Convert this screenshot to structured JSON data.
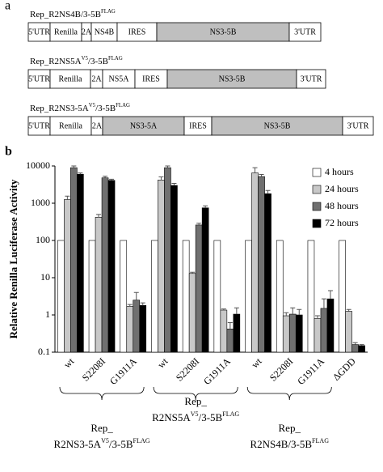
{
  "panel_labels": [
    "a",
    "b"
  ],
  "constructs": [
    {
      "name_parts": [
        "Rep_R2NS4B/3-5B",
        "FLAG"
      ],
      "segments": [
        "5'UTR",
        "Renilla",
        "2A",
        "NS4B",
        "IRES",
        "NS3-5B",
        "3'UTR"
      ]
    },
    {
      "name_parts": [
        "Rep_R2NS5A",
        "V5",
        "/3-5B",
        "FLAG"
      ],
      "segments": [
        "5'UTR",
        "Renilla",
        "2A",
        "NS5A",
        "IRES",
        "NS3-5B",
        "3'UTR"
      ]
    },
    {
      "name_parts": [
        "Rep_R2NS3-5A",
        "V5",
        "/3-5B",
        "FLAG"
      ],
      "segments": [
        "5'UTR",
        "Renilla",
        "2A",
        "NS3-5A",
        "IRES",
        "NS3-5B",
        "3'UTR"
      ]
    }
  ],
  "chart_data": {
    "type": "bar",
    "y_label": "Relative Renilla  Luciferase Activity",
    "log_y": true,
    "legend": "top-right",
    "categories": [
      "wt",
      "S2208I",
      "G1911A",
      "wt",
      "S2208I",
      "G1911A",
      "wt",
      "S2208I",
      "G1911A",
      "ΔGDD"
    ],
    "series": [
      {
        "name": "4 hours",
        "color": "#ffffff",
        "values": [
          100,
          100,
          100,
          100,
          100,
          100,
          100,
          100,
          100,
          100
        ]
      },
      {
        "name": "24 hours",
        "color": "#c8c8c8",
        "values": [
          1250,
          420,
          1.7,
          4200,
          13,
          1.35,
          6500,
          0.95,
          0.8,
          1.25
        ],
        "errors": [
          300,
          80,
          0.2,
          900,
          1,
          0.1,
          2500,
          0.2,
          0.15,
          0.15
        ]
      },
      {
        "name": "48 hours",
        "color": "#707070",
        "values": [
          9000,
          4800,
          2.5,
          9000,
          260,
          0.42,
          5200,
          1.05,
          1.5,
          0.16
        ],
        "errors": [
          1000,
          500,
          1.5,
          1000,
          30,
          0.2,
          700,
          0.5,
          1.2,
          0.02
        ]
      },
      {
        "name": "72 hours",
        "color": "#000000",
        "values": [
          6000,
          4100,
          1.8,
          3000,
          750,
          1.05,
          1800,
          1.0,
          2.7,
          0.15
        ],
        "errors": [
          500,
          300,
          0.3,
          400,
          100,
          0.5,
          400,
          0.4,
          1.8,
          0.01
        ]
      }
    ],
    "ylim": [
      0.1,
      10000
    ],
    "yticks": [
      0.1,
      1,
      10,
      100,
      1000,
      10000
    ],
    "groups": [
      {
        "label_lines": [
          [
            "Rep_"
          ],
          [
            "R2NS3-5A",
            "V5",
            "/3-5B",
            "FLAG"
          ]
        ]
      },
      {
        "label_lines": [
          [
            "Rep_"
          ],
          [
            "R2NS5A",
            "V5",
            "/3-5B",
            "FLAG"
          ]
        ]
      },
      {
        "label_lines": [
          [
            "Rep_"
          ],
          [
            "R2NS4B/3-5B",
            "FLAG"
          ]
        ]
      }
    ]
  }
}
